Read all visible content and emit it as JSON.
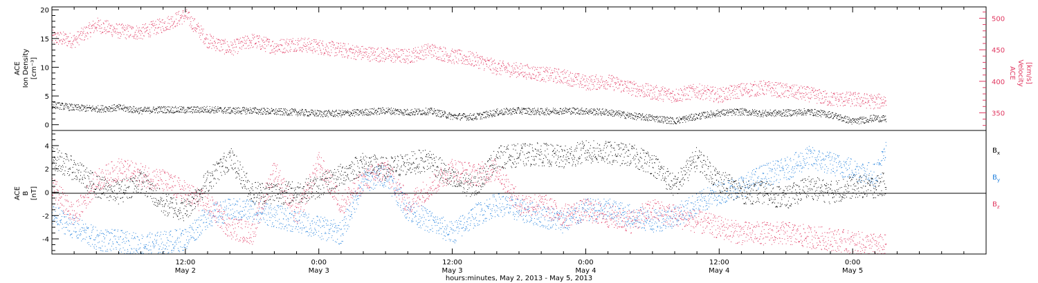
{
  "x_axis": {
    "title": "hours:minutes, May  2, 2013 - May  5, 2013",
    "ticks": [
      {
        "t": 12,
        "time": "12:00",
        "date": "May 2"
      },
      {
        "t": 24,
        "time": "0:00",
        "date": "May 3"
      },
      {
        "t": 36,
        "time": "12:00",
        "date": "May 3"
      },
      {
        "t": 48,
        "time": "0:00",
        "date": "May 4"
      },
      {
        "t": 60,
        "time": "12:00",
        "date": "May 4"
      },
      {
        "t": 72,
        "time": "0:00",
        "date": "May 5"
      }
    ]
  },
  "panel1": {
    "left_label": [
      "ACE",
      "Ion Density",
      "[cm⁻³]"
    ],
    "right_label": [
      "ACE",
      "Velocity",
      "[km/s]"
    ],
    "left_ticks": [
      "0",
      "5",
      "10",
      "15",
      "20"
    ],
    "right_ticks": [
      "350",
      "400",
      "450",
      "500"
    ]
  },
  "panel2": {
    "left_label": [
      "ACE",
      "B",
      "[nT]"
    ],
    "ticks": [
      "-4",
      "-2",
      "0",
      "2",
      "4"
    ],
    "legend": [
      {
        "base": "B",
        "sub": "x",
        "color": "#000000"
      },
      {
        "base": "B",
        "sub": "y",
        "color": "#1f7fdc"
      },
      {
        "base": "B",
        "sub": "z",
        "color": "#e0365f"
      }
    ]
  },
  "colors": {
    "density": "#000000",
    "velocity": "#e0365f",
    "bx": "#000000",
    "by": "#1f7fdc",
    "bz": "#e0365f"
  },
  "chart_data": [
    {
      "type": "scatter",
      "title": "",
      "xlabel": "hours:minutes, May  2, 2013 - May  5, 2013",
      "x_unit": "hours since 2013-05-02 00:00",
      "xlim": [
        0,
        84
      ],
      "series": [
        {
          "name": "Ion Density",
          "axis": "left",
          "ylim": [
            -1,
            20.5
          ],
          "x": [
            0,
            2,
            4,
            6,
            8,
            10,
            12,
            14,
            16,
            18,
            20,
            22,
            24,
            26,
            28,
            30,
            32,
            34,
            36,
            38,
            40,
            42,
            44,
            46,
            48,
            50,
            52,
            54,
            56,
            58,
            60,
            62,
            64,
            66,
            68,
            70,
            72,
            74,
            75
          ],
          "values": [
            3.5,
            3,
            2.8,
            3,
            2.5,
            2.7,
            2.6,
            2.7,
            2.5,
            2.5,
            2.3,
            2.2,
            2,
            2,
            2.2,
            2.5,
            2.2,
            2.4,
            1.5,
            1.4,
            2.2,
            2.5,
            2.3,
            2.5,
            2.4,
            2.2,
            1.6,
            1.2,
            0.7,
            1.5,
            2.1,
            2.3,
            2.0,
            2.1,
            2.3,
            1.8,
            0.6,
            1.2,
            1.0
          ]
        },
        {
          "name": "Velocity",
          "axis": "right",
          "ylim": [
            322,
            518
          ],
          "x": [
            0,
            2,
            4,
            6,
            8,
            10,
            12,
            14,
            16,
            18,
            20,
            22,
            24,
            26,
            28,
            30,
            32,
            34,
            36,
            38,
            40,
            42,
            44,
            46,
            48,
            50,
            52,
            54,
            56,
            58,
            60,
            62,
            64,
            66,
            68,
            70,
            72,
            74,
            75
          ],
          "values": [
            470,
            465,
            490,
            480,
            478,
            490,
            505,
            465,
            452,
            465,
            455,
            460,
            455,
            450,
            445,
            442,
            440,
            450,
            440,
            435,
            422,
            418,
            412,
            408,
            398,
            400,
            390,
            383,
            378,
            385,
            378,
            386,
            390,
            385,
            380,
            372,
            372,
            368,
            370
          ]
        }
      ]
    },
    {
      "type": "scatter",
      "title": "",
      "ylabel": "B [nT]",
      "x_unit": "hours since 2013-05-02 00:00",
      "xlim": [
        0,
        84
      ],
      "ylim": [
        -5.3,
        5.3
      ],
      "series": [
        {
          "name": "Bx",
          "x": [
            0,
            2,
            4,
            6,
            8,
            10,
            12,
            14,
            16,
            18,
            20,
            22,
            24,
            26,
            28,
            30,
            32,
            34,
            36,
            38,
            40,
            42,
            44,
            46,
            48,
            50,
            52,
            54,
            56,
            58,
            60,
            62,
            64,
            66,
            68,
            70,
            72,
            74,
            75
          ],
          "values": [
            3,
            2,
            0.5,
            0,
            1,
            -1,
            -1.5,
            1,
            3,
            0,
            0,
            0,
            0.5,
            1.5,
            2.5,
            2,
            2.5,
            2.8,
            1,
            0.5,
            3,
            3.2,
            3.3,
            3,
            3.5,
            3.4,
            3.2,
            2.5,
            0.5,
            3,
            1,
            0,
            0,
            -0.5,
            0.5,
            0,
            0.5,
            0.5,
            0.8
          ]
        },
        {
          "name": "By",
          "x": [
            0,
            2,
            4,
            6,
            8,
            10,
            12,
            14,
            16,
            18,
            20,
            22,
            24,
            26,
            28,
            30,
            32,
            34,
            36,
            38,
            40,
            42,
            44,
            46,
            48,
            50,
            52,
            54,
            56,
            58,
            60,
            62,
            64,
            66,
            68,
            70,
            72,
            74,
            75
          ],
          "values": [
            -2,
            -3,
            -4,
            -4.2,
            -4.5,
            -4.3,
            -4,
            -2,
            -1.5,
            -1.5,
            -2,
            -2.5,
            -3,
            -3.5,
            1,
            1.5,
            -1.5,
            -2.5,
            -3.5,
            -2,
            -1,
            -1.5,
            -2,
            -2.5,
            -1.5,
            -1.5,
            -2,
            -2.5,
            -2,
            -1,
            0,
            0.5,
            1.5,
            2,
            3,
            2.5,
            2,
            1.5,
            3.5
          ]
        },
        {
          "name": "Bz",
          "x": [
            0,
            2,
            4,
            6,
            8,
            10,
            12,
            14,
            16,
            18,
            20,
            22,
            24,
            26,
            28,
            30,
            32,
            34,
            36,
            38,
            40,
            42,
            44,
            46,
            48,
            50,
            52,
            54,
            56,
            58,
            60,
            62,
            64,
            66,
            68,
            70,
            72,
            74,
            75
          ],
          "values": [
            0.5,
            -2,
            1,
            2,
            1.5,
            1,
            0,
            -1,
            -3,
            -3.5,
            2,
            -2,
            2.5,
            -1,
            1,
            2,
            -1,
            0.5,
            2,
            1.5,
            2,
            -1,
            -1,
            -2,
            -1.5,
            -2,
            -2.5,
            -1.5,
            -2,
            -2.5,
            -3,
            -3.5,
            -3.5,
            -3.5,
            -3.8,
            -4,
            -4.3,
            -4.5,
            -4.6
          ]
        }
      ]
    }
  ]
}
